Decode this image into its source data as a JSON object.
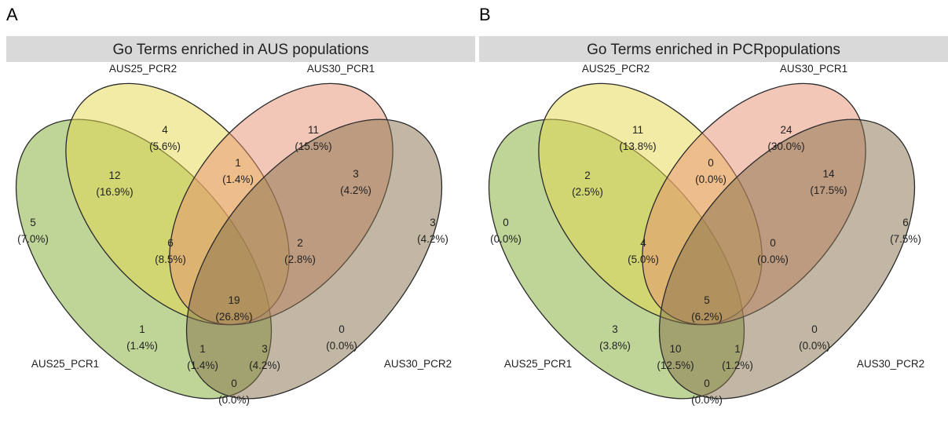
{
  "colors": {
    "strip": "#d9d9d9",
    "set_colors": [
      "#7fab2f",
      "#e6d84e",
      "#e89072",
      "#86704a"
    ],
    "set_opacity": 0.5
  },
  "panels": [
    {
      "letter": "A",
      "title": "Go Terms enriched in AUS populations",
      "sets": [
        "AUS25_PCR1",
        "AUS25_PCR2",
        "AUS30_PCR1",
        "AUS30_PCR2"
      ],
      "regions": [
        {
          "sets": [
            "AUS25_PCR1"
          ],
          "count": "5",
          "pct": "(7.0%)"
        },
        {
          "sets": [
            "AUS25_PCR2"
          ],
          "count": "4",
          "pct": "(5.6%)"
        },
        {
          "sets": [
            "AUS30_PCR1"
          ],
          "count": "11",
          "pct": "(15.5%)"
        },
        {
          "sets": [
            "AUS30_PCR2"
          ],
          "count": "3",
          "pct": "(4.2%)"
        },
        {
          "sets": [
            "AUS25_PCR1",
            "AUS25_PCR2"
          ],
          "count": "12",
          "pct": "(16.9%)"
        },
        {
          "sets": [
            "AUS25_PCR2",
            "AUS30_PCR1"
          ],
          "count": "1",
          "pct": "(1.4%)"
        },
        {
          "sets": [
            "AUS30_PCR1",
            "AUS30_PCR2"
          ],
          "count": "3",
          "pct": "(4.2%)"
        },
        {
          "sets": [
            "AUS25_PCR1",
            "AUS25_PCR2",
            "AUS30_PCR1"
          ],
          "count": "6",
          "pct": "(8.5%)"
        },
        {
          "sets": [
            "AUS25_PCR2",
            "AUS30_PCR1",
            "AUS30_PCR2"
          ],
          "count": "2",
          "pct": "(2.8%)"
        },
        {
          "sets": [
            "AUS25_PCR1",
            "AUS25_PCR2",
            "AUS30_PCR1",
            "AUS30_PCR2"
          ],
          "count": "19",
          "pct": "(26.8%)"
        },
        {
          "sets": [
            "AUS25_PCR1",
            "AUS30_PCR1"
          ],
          "count": "1",
          "pct": "(1.4%)"
        },
        {
          "sets": [
            "AUS25_PCR2",
            "AUS30_PCR2"
          ],
          "count": "0",
          "pct": "(0.0%)"
        },
        {
          "sets": [
            "AUS25_PCR1",
            "AUS30_PCR1",
            "AUS30_PCR2"
          ],
          "count": "1",
          "pct": "(1.4%)"
        },
        {
          "sets": [
            "AUS25_PCR1",
            "AUS25_PCR2",
            "AUS30_PCR2"
          ],
          "count": "3",
          "pct": "(4.2%)"
        },
        {
          "sets": [
            "AUS25_PCR1",
            "AUS30_PCR2"
          ],
          "count": "0",
          "pct": "(0.0%)"
        }
      ]
    },
    {
      "letter": "B",
      "title": "Go Terms enriched in PCRpopulations",
      "sets": [
        "AUS25_PCR1",
        "AUS25_PCR2",
        "AUS30_PCR1",
        "AUS30_PCR2"
      ],
      "regions": [
        {
          "sets": [
            "AUS25_PCR1"
          ],
          "count": "0",
          "pct": "(0.0%)"
        },
        {
          "sets": [
            "AUS25_PCR2"
          ],
          "count": "11",
          "pct": "(13.8%)"
        },
        {
          "sets": [
            "AUS30_PCR1"
          ],
          "count": "24",
          "pct": "(30.0%)"
        },
        {
          "sets": [
            "AUS30_PCR2"
          ],
          "count": "6",
          "pct": "(7.5%)"
        },
        {
          "sets": [
            "AUS25_PCR1",
            "AUS25_PCR2"
          ],
          "count": "2",
          "pct": "(2.5%)"
        },
        {
          "sets": [
            "AUS25_PCR2",
            "AUS30_PCR1"
          ],
          "count": "0",
          "pct": "(0.0%)"
        },
        {
          "sets": [
            "AUS30_PCR1",
            "AUS30_PCR2"
          ],
          "count": "14",
          "pct": "(17.5%)"
        },
        {
          "sets": [
            "AUS25_PCR1",
            "AUS25_PCR2",
            "AUS30_PCR1"
          ],
          "count": "4",
          "pct": "(5.0%)"
        },
        {
          "sets": [
            "AUS25_PCR2",
            "AUS30_PCR1",
            "AUS30_PCR2"
          ],
          "count": "0",
          "pct": "(0.0%)"
        },
        {
          "sets": [
            "AUS25_PCR1",
            "AUS25_PCR2",
            "AUS30_PCR1",
            "AUS30_PCR2"
          ],
          "count": "5",
          "pct": "(6.2%)"
        },
        {
          "sets": [
            "AUS25_PCR1",
            "AUS30_PCR1"
          ],
          "count": "3",
          "pct": "(3.8%)"
        },
        {
          "sets": [
            "AUS25_PCR2",
            "AUS30_PCR2"
          ],
          "count": "0",
          "pct": "(0.0%)"
        },
        {
          "sets": [
            "AUS25_PCR1",
            "AUS30_PCR1",
            "AUS30_PCR2"
          ],
          "count": "10",
          "pct": "(12.5%)"
        },
        {
          "sets": [
            "AUS25_PCR1",
            "AUS25_PCR2",
            "AUS30_PCR2"
          ],
          "count": "1",
          "pct": "(1.2%)"
        },
        {
          "sets": [
            "AUS25_PCR1",
            "AUS30_PCR2"
          ],
          "count": "0",
          "pct": "(0.0%)"
        }
      ]
    }
  ]
}
